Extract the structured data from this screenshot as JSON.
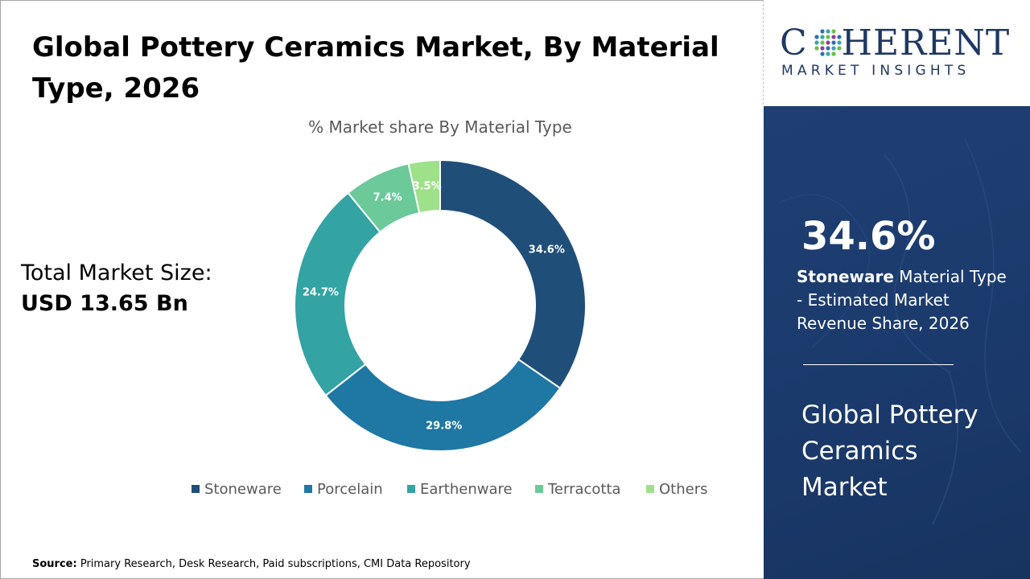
{
  "title": "Global Pottery Ceramics Market, By Material Type, 2026",
  "total": {
    "label": "Total Market Size:",
    "value": "USD 13.65 Bn"
  },
  "source": {
    "label": "Source:",
    "text": "Primary Research, Desk Research, Paid subscriptions, CMI Data Repository"
  },
  "logo": {
    "word_left": "C",
    "word_right": "HERENT",
    "tagline": "MARKET INSIGHTS",
    "icon": "globe-dots-icon"
  },
  "highlight": {
    "value": "34.6%",
    "segment": "Stoneware",
    "description": "Material Type - Estimated Market Revenue Share, 2026",
    "market_name": "Global Pottery Ceramics Market"
  },
  "colors": {
    "panel": "#1b3a6c",
    "logo_text": "#1f3864"
  },
  "chart_data": {
    "type": "pie",
    "style": "donut",
    "title": "% Market share By Material Type",
    "categories": [
      "Stoneware",
      "Porcelain",
      "Earthenware",
      "Terracotta",
      "Others"
    ],
    "values": [
      34.6,
      29.8,
      24.7,
      7.4,
      3.5
    ],
    "labels": [
      "34.6%",
      "29.8%",
      "24.7%",
      "7.4%",
      "3.5%"
    ],
    "colors": [
      "#1f4e79",
      "#1f77a4",
      "#33a3a3",
      "#6bc99a",
      "#9fe08a"
    ],
    "legend": "bottom"
  }
}
